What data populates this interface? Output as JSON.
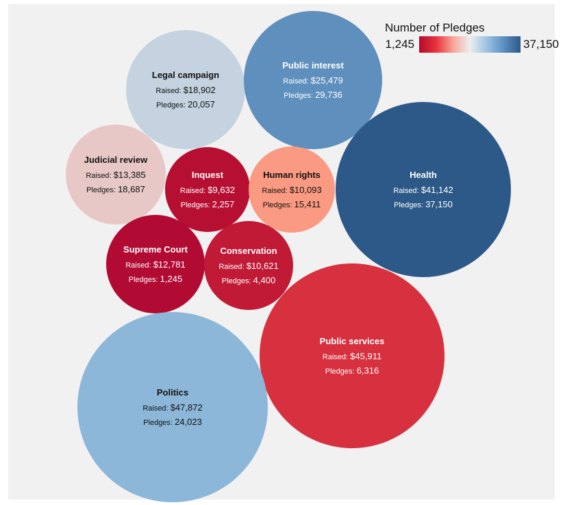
{
  "chart_data": {
    "type": "bubble",
    "size_metric": "Raised",
    "color_metric": "Pledges",
    "raised_label": "Raised",
    "pledges_label": "Pledges",
    "legend": {
      "title": "Number of Pledges",
      "min_label": "1,245",
      "max_label": "37,150",
      "min": 1245,
      "max": 37150,
      "placement": "top-right",
      "colors": [
        "#b40a2c",
        "#e8323c",
        "#f7a496",
        "#eeeeee",
        "#9cc3e2",
        "#5c8fc0",
        "#2d5988"
      ]
    },
    "bubbles": [
      {
        "name": "Legal campaign",
        "raised": 18902,
        "raised_label": "$18,902",
        "pledges": 20057,
        "pledges_label": "20,057",
        "color": "#c4d3df"
      },
      {
        "name": "Public interest",
        "raised": 25479,
        "raised_label": "$25,479",
        "pledges": 29736,
        "pledges_label": "29,736",
        "color": "#5f8fbd"
      },
      {
        "name": "Judicial review",
        "raised": 13385,
        "raised_label": "$13,385",
        "pledges": 18687,
        "pledges_label": "18,687",
        "color": "#e8c8c6"
      },
      {
        "name": "Inquest",
        "raised": 9632,
        "raised_label": "$9,632",
        "pledges": 2257,
        "pledges_label": "2,257",
        "color": "#b70f32"
      },
      {
        "name": "Human rights",
        "raised": 10093,
        "raised_label": "$10,093",
        "pledges": 15411,
        "pledges_label": "15,411",
        "color": "#fb9a82"
      },
      {
        "name": "Health",
        "raised": 41142,
        "raised_label": "$41,142",
        "pledges": 37150,
        "pledges_label": "37,150",
        "color": "#2d5988"
      },
      {
        "name": "Supreme Court",
        "raised": 12781,
        "raised_label": "$12,781",
        "pledges": 1245,
        "pledges_label": "1,245",
        "color": "#b10b34"
      },
      {
        "name": "Conservation",
        "raised": 10621,
        "raised_label": "$10,621",
        "pledges": 4400,
        "pledges_label": "4,400",
        "color": "#c01a36"
      },
      {
        "name": "Public services",
        "raised": 45911,
        "raised_label": "$45,911",
        "pledges": 6316,
        "pledges_label": "6,316",
        "color": "#d7303e"
      },
      {
        "name": "Politics",
        "raised": 47872,
        "raised_label": "$47,872",
        "pledges": 24023,
        "pledges_label": "24,023",
        "color": "#8cb7d9"
      }
    ]
  }
}
